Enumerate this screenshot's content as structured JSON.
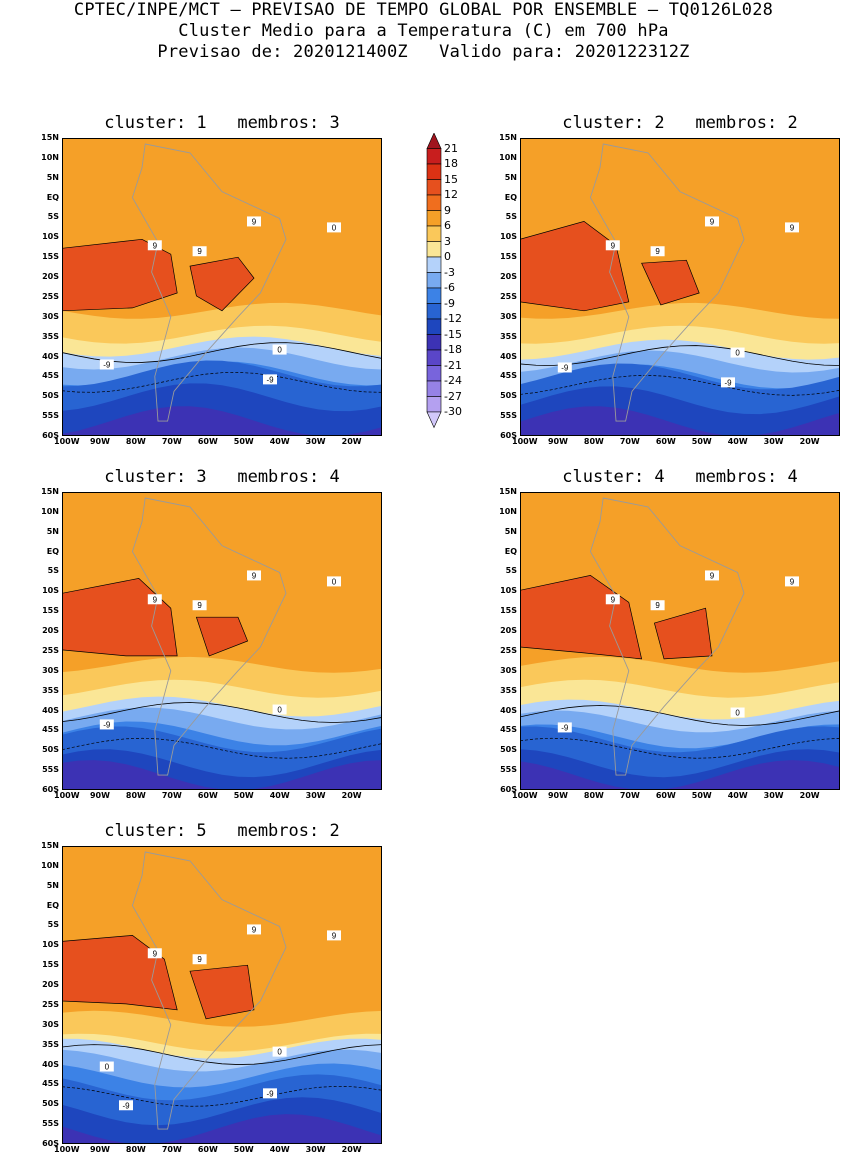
{
  "header": {
    "line1": "CPTEC/INPE/MCT – PREVISAO DE TEMPO GLOBAL POR ENSEMBLE – TQ0126L028",
    "line2": "Cluster Medio para a Temperatura (C) em 700 hPa",
    "line3": "Previsao de: 2020121400Z   Valido para: 2020122312Z"
  },
  "lat_labels": [
    "15N",
    "10N",
    "5N",
    "EQ",
    "5S",
    "10S",
    "15S",
    "20S",
    "25S",
    "30S",
    "35S",
    "40S",
    "45S",
    "50S",
    "55S",
    "60S"
  ],
  "lon_labels": [
    "100W",
    "90W",
    "80W",
    "70W",
    "60W",
    "50W",
    "40W",
    "30W",
    "20W"
  ],
  "colorbar": {
    "labels": [
      "21",
      "18",
      "15",
      "12",
      "9",
      "6",
      "3",
      "0",
      "-3",
      "-6",
      "-9",
      "-12",
      "-15",
      "-18",
      "-21",
      "-24",
      "-27",
      "-30"
    ],
    "colors": [
      "#a0141e",
      "#c81e1e",
      "#dc3214",
      "#e6501e",
      "#f06e1e",
      "#f5a028",
      "#fac85a",
      "#fae696",
      "#b4d2fa",
      "#78aaf0",
      "#3c82e6",
      "#2864d2",
      "#1e46be",
      "#3c32b4",
      "#5a46c8",
      "#7864dc",
      "#9682e6",
      "#b4a0f0",
      "#d2c8fa"
    ]
  },
  "panels": [
    {
      "title": "cluster: 1   membros: 3",
      "contour_labels": [
        "9",
        "9",
        "9",
        "0",
        "0",
        "-9",
        "-9"
      ]
    },
    {
      "title": "cluster: 2   membros: 2",
      "contour_labels": [
        "9",
        "9",
        "9",
        "9",
        "0",
        "-9",
        "-9"
      ]
    },
    {
      "title": "cluster: 3   membros: 4",
      "contour_labels": [
        "9",
        "9",
        "9",
        "0",
        "0",
        "-9"
      ]
    },
    {
      "title": "cluster: 4   membros: 4",
      "contour_labels": [
        "9",
        "9",
        "9",
        "9",
        "0",
        "-9"
      ]
    },
    {
      "title": "cluster: 5   membros: 2",
      "contour_labels": [
        "9",
        "9",
        "9",
        "9",
        "0",
        "0",
        "-9",
        "-9"
      ]
    }
  ]
}
